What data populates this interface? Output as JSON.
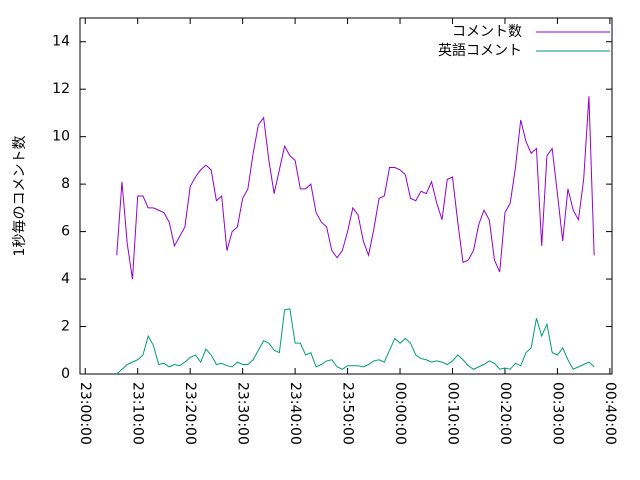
{
  "chart_data": {
    "type": "line",
    "ylabel": "1秒毎のコメント数",
    "x": [
      6,
      7,
      8,
      9,
      10,
      11,
      12,
      13,
      14,
      15,
      16,
      17,
      18,
      19,
      20,
      21,
      22,
      23,
      24,
      25,
      26,
      27,
      28,
      29,
      30,
      31,
      32,
      33,
      34,
      35,
      36,
      37,
      38,
      39,
      40,
      41,
      42,
      43,
      44,
      45,
      46,
      47,
      48,
      49,
      50,
      51,
      52,
      53,
      54,
      55,
      56,
      57,
      58,
      59,
      60,
      61,
      62,
      63,
      64,
      65,
      66,
      67,
      68,
      69,
      70,
      71,
      72,
      73,
      74,
      75,
      76,
      77,
      78,
      79,
      80,
      81,
      82,
      83,
      84,
      85,
      86,
      87,
      88,
      89,
      90,
      91,
      92,
      93,
      94,
      95,
      96,
      97
    ],
    "series": [
      {
        "name": "コメント数",
        "color": "#9400d3",
        "values": [
          5,
          8.1,
          5.5,
          4,
          7.5,
          7.5,
          7,
          7,
          6.9,
          6.8,
          6.4,
          5.4,
          5.8,
          6.2,
          7.9,
          8.3,
          8.6,
          8.8,
          8.6,
          7.3,
          7.5,
          5.2,
          6,
          6.2,
          7.4,
          7.8,
          9.3,
          10.5,
          10.8,
          9,
          7.6,
          8.6,
          9.6,
          9.2,
          9,
          7.8,
          7.8,
          8,
          6.8,
          6.4,
          6.2,
          5.2,
          4.9,
          5.2,
          6,
          7,
          6.7,
          5.6,
          5,
          6.1,
          7.4,
          7.5,
          8.7,
          8.7,
          8.6,
          8.4,
          7.4,
          7.3,
          7.7,
          7.6,
          8.1,
          7.2,
          6.5,
          8.2,
          8.3,
          6.4,
          4.7,
          4.8,
          5.2,
          6.3,
          6.9,
          6.5,
          4.8,
          4.3,
          6.8,
          7.2,
          8.7,
          10.7,
          9.8,
          9.3,
          9.5,
          5.4,
          9.2,
          9.5,
          7.6,
          5.6,
          7.8,
          6.9,
          6.5,
          8.2,
          11.7,
          5
        ]
      },
      {
        "name": "英語コメント",
        "color": "#009e73",
        "values": [
          0,
          0.2,
          0.4,
          0.5,
          0.6,
          0.8,
          1.6,
          1.2,
          0.4,
          0.45,
          0.3,
          0.4,
          0.35,
          0.5,
          0.7,
          0.8,
          0.5,
          1.05,
          0.8,
          0.4,
          0.45,
          0.35,
          0.3,
          0.5,
          0.4,
          0.4,
          0.6,
          1,
          1.4,
          1.3,
          1,
          0.9,
          2.7,
          2.75,
          1.3,
          1.3,
          0.8,
          0.9,
          0.3,
          0.4,
          0.55,
          0.6,
          0.3,
          0.2,
          0.35,
          0.35,
          0.35,
          0.3,
          0.4,
          0.55,
          0.6,
          0.5,
          1,
          1.5,
          1.3,
          1.5,
          1.3,
          0.8,
          0.65,
          0.6,
          0.5,
          0.55,
          0.5,
          0.4,
          0.55,
          0.8,
          0.6,
          0.35,
          0.2,
          0.3,
          0.4,
          0.55,
          0.45,
          0.2,
          0.25,
          0.2,
          0.45,
          0.35,
          0.9,
          1.1,
          2.35,
          1.6,
          2.1,
          0.9,
          0.8,
          1.1,
          0.6,
          0.2,
          0.3,
          0.4,
          0.5,
          0.3
        ]
      }
    ],
    "xlim": [
      -1,
      100.4
    ],
    "xticks": [
      {
        "value": 0,
        "label": "23:00:00"
      },
      {
        "value": 10,
        "label": "23:10:00"
      },
      {
        "value": 20,
        "label": "23:20:00"
      },
      {
        "value": 30,
        "label": "23:30:00"
      },
      {
        "value": 40,
        "label": "23:40:00"
      },
      {
        "value": 50,
        "label": "23:50:00"
      },
      {
        "value": 60,
        "label": "00:00:00"
      },
      {
        "value": 70,
        "label": "00:10:00"
      },
      {
        "value": 80,
        "label": "00:20:00"
      },
      {
        "value": 90,
        "label": "00:30:00"
      },
      {
        "value": 100,
        "label": "00:40:00"
      }
    ],
    "ylim": [
      0,
      15
    ],
    "yticks": [
      0,
      2,
      4,
      6,
      8,
      10,
      12,
      14
    ],
    "legend": "top-right"
  }
}
